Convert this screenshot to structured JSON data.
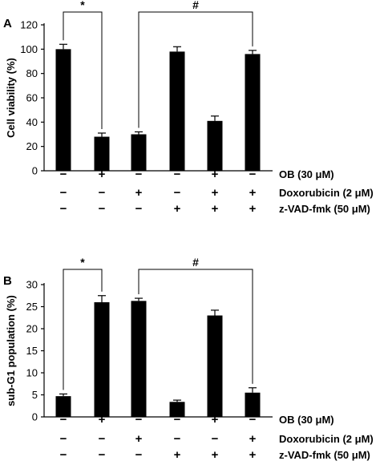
{
  "chart_data": [
    {
      "type": "bar",
      "panel_label": "A",
      "ylabel": "Cell viability (%)",
      "ylim": [
        0,
        120
      ],
      "yticks": [
        0,
        20,
        40,
        60,
        80,
        100,
        120
      ],
      "values": [
        100,
        28,
        30,
        98,
        41,
        96
      ],
      "errors": [
        4,
        3,
        2,
        4,
        4,
        3
      ],
      "conditions": [
        {
          "label": "OB (30 μM)",
          "signs": [
            "−",
            "+",
            "−",
            "−",
            "+",
            "−"
          ]
        },
        {
          "label": "Doxorubicin (2 μM)",
          "signs": [
            "−",
            "−",
            "+",
            "−",
            "+",
            "+"
          ]
        },
        {
          "label": "z-VAD-fmk (50 μM)",
          "signs": [
            "−",
            "−",
            "−",
            "+",
            "+",
            "+"
          ]
        }
      ],
      "brackets": [
        {
          "from": 0,
          "to": 1,
          "symbol": "*"
        },
        {
          "from": 2,
          "to": 5,
          "symbol": "#"
        }
      ]
    },
    {
      "type": "bar",
      "panel_label": "B",
      "ylabel": "sub-G1 population (%)",
      "ylim": [
        0,
        30
      ],
      "yticks": [
        0,
        5,
        10,
        15,
        20,
        25,
        30
      ],
      "values": [
        4.7,
        26,
        26.3,
        3.4,
        23,
        5.5
      ],
      "errors": [
        0.5,
        1.5,
        0.6,
        0.4,
        1.2,
        1.1
      ],
      "conditions": [
        {
          "label": "OB (30 μM)",
          "signs": [
            "−",
            "+",
            "−",
            "−",
            "+",
            "−"
          ]
        },
        {
          "label": "Doxorubicin (2 μM)",
          "signs": [
            "−",
            "−",
            "+",
            "−",
            "−",
            "+"
          ]
        },
        {
          "label": "z-VAD-fmk (50 μM)",
          "signs": [
            "−",
            "−",
            "−",
            "+",
            "+",
            "+"
          ]
        }
      ],
      "brackets": [
        {
          "from": 0,
          "to": 1,
          "symbol": "*"
        },
        {
          "from": 2,
          "to": 5,
          "symbol": "#"
        }
      ]
    }
  ]
}
